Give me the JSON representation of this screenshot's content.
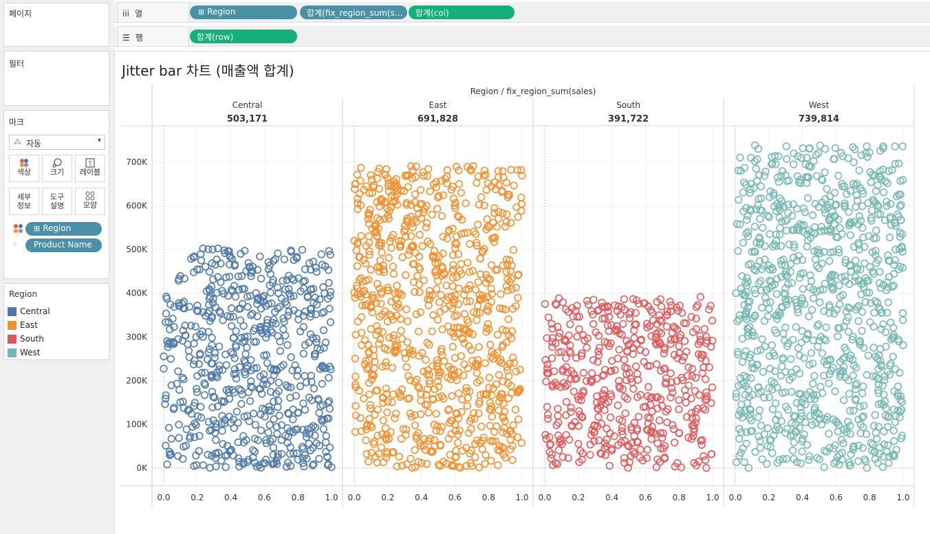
{
  "sidebar": {
    "pages_title": "페이지",
    "filters_title": "필터",
    "marks": {
      "title": "마크",
      "type_label": "자동",
      "buttons": [
        {
          "label": "색상",
          "icon": "color-icon"
        },
        {
          "label": "크기",
          "icon": "size-icon"
        },
        {
          "label": "레이블",
          "icon": "label-icon"
        },
        {
          "label": "세부\n정보",
          "line1": "세부",
          "line2": "정보",
          "icon": "detail-icon"
        },
        {
          "label": "도구\n설명",
          "line1": "도구",
          "line2": "설명",
          "icon": "tooltip-icon"
        },
        {
          "label": "모양",
          "icon": "shape-icon"
        }
      ],
      "fields": [
        {
          "label": "Region",
          "type": "color"
        },
        {
          "label": "Product Name",
          "type": "detail"
        }
      ]
    },
    "legend": {
      "title": "Region",
      "items": [
        {
          "label": "Central",
          "color": "#4e79a7"
        },
        {
          "label": "East",
          "color": "#f28e2b"
        },
        {
          "label": "South",
          "color": "#e15759"
        },
        {
          "label": "West",
          "color": "#76b7b2"
        }
      ]
    }
  },
  "shelves": {
    "columns": {
      "label": "열",
      "pills": [
        {
          "label": "Region",
          "color": "blue",
          "plus": "⊞"
        },
        {
          "label": "합계(fix_region_sum(sal..",
          "color": "blue"
        },
        {
          "label": "합계(col)",
          "color": "green"
        }
      ]
    },
    "rows": {
      "label": "행",
      "pills": [
        {
          "label": "합계(row)",
          "color": "green"
        }
      ]
    }
  },
  "view": {
    "title": "Jitter bar 차트 (매출액 합계)",
    "header": "Region  /  fix_region_sum(sales)"
  },
  "chart_data": {
    "type": "scatter",
    "title": "Jitter bar 차트 (매출액 합계)",
    "panel_header": "Region  /  fix_region_sum(sales)",
    "panels": [
      {
        "region": "Central",
        "total": 503171,
        "total_label": "503,171",
        "color": "#4e79a7"
      },
      {
        "region": "East",
        "total": 691828,
        "total_label": "691,828",
        "color": "#f28e2b"
      },
      {
        "region": "South",
        "total": 391722,
        "total_label": "391,722",
        "color": "#e15759"
      },
      {
        "region": "West",
        "total": 739814,
        "total_label": "739,814",
        "color": "#76b7b2"
      }
    ],
    "x_ticks": [
      "0.0",
      "0.2",
      "0.4",
      "0.6",
      "0.8",
      "1.0"
    ],
    "xlim": [
      0,
      1
    ],
    "y_ticks": [
      "0K",
      "100K",
      "200K",
      "300K",
      "400K",
      "500K",
      "600K",
      "700K"
    ],
    "ylim": [
      0,
      775000
    ],
    "grid": true,
    "marker": "open-circle"
  }
}
